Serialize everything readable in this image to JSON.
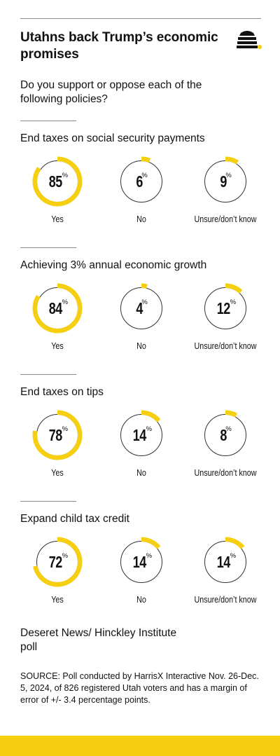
{
  "header": {
    "title": "Utahns back Trump’s economic promises",
    "question": "Do you support or oppose each of the following policies?"
  },
  "colors": {
    "accent": "#f5cf10",
    "ring": "#333333",
    "text": "#111111"
  },
  "chart_data": [
    {
      "type": "pie",
      "title": "End taxes on social security payments",
      "categories": [
        "Yes",
        "No",
        "Unsure/don’t know"
      ],
      "values": [
        85,
        6,
        9
      ],
      "unit": "%"
    },
    {
      "type": "pie",
      "title": "Achieving 3% annual economic growth",
      "categories": [
        "Yes",
        "No",
        "Unsure/don’t know"
      ],
      "values": [
        84,
        4,
        12
      ],
      "unit": "%"
    },
    {
      "type": "pie",
      "title": "End taxes on tips",
      "categories": [
        "Yes",
        "No",
        "Unsure/don’t know"
      ],
      "values": [
        78,
        14,
        8
      ],
      "unit": "%"
    },
    {
      "type": "pie",
      "title": "Expand child tax credit",
      "categories": [
        "Yes",
        "No",
        "Unsure/don’t know"
      ],
      "values": [
        72,
        14,
        14
      ],
      "unit": "%"
    }
  ],
  "footer": {
    "org": "Deseret News/ Hinckley Institute poll",
    "source": "SOURCE: Poll conducted by HarrisX Interactive Nov. 26-Dec. 5, 2024, of 826 registered Utah voters and has a margin of error of +/- 3.4 percentage points."
  }
}
